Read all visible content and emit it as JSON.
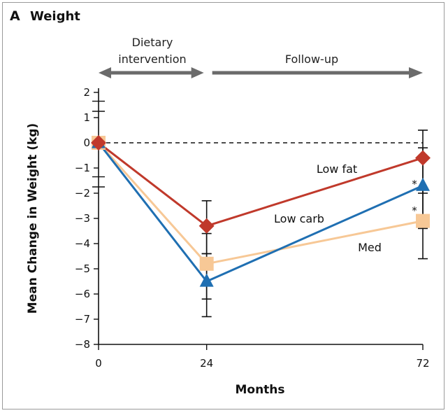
{
  "panel": {
    "letter": "A",
    "title": "Weight"
  },
  "phases": [
    {
      "text_lines": [
        "Dietary",
        "intervention"
      ],
      "from": 0,
      "to": 24
    },
    {
      "text_lines": [
        "Follow-up"
      ],
      "from": 24,
      "to": 72
    }
  ],
  "colors": {
    "low_fat": "#c0392b",
    "low_carb": "#1f6fb2",
    "med": "#f7c896",
    "phase_arrow": "#6b6b6b",
    "axis": "#111111"
  },
  "chart_data": {
    "type": "line",
    "xlabel": "Months",
    "ylabel": "Mean Change in Weight (kg)",
    "x_ticks": [
      0,
      24,
      72
    ],
    "y_ticks": [
      2,
      1,
      0,
      -1,
      -2,
      -3,
      -4,
      -5,
      -6,
      -7,
      -8
    ],
    "y_tick_labels": [
      "2",
      "1",
      "0",
      "−1",
      "−2",
      "−3",
      "−4",
      "−5",
      "−6",
      "−7",
      "−8"
    ],
    "xlim": [
      0,
      72
    ],
    "ylim": [
      -8,
      2
    ],
    "reference_line_y": 0,
    "series": [
      {
        "key": "low_fat",
        "name": "Low fat",
        "marker": "diamond",
        "x": [
          0,
          24,
          72
        ],
        "y": [
          0,
          -3.3,
          -0.6
        ],
        "err_low": [
          null,
          -4.4,
          -2.0
        ],
        "err_high": [
          null,
          -2.3,
          0.5
        ],
        "star_at_72": false
      },
      {
        "key": "low_carb",
        "name": "Low carb",
        "marker": "triangle",
        "x": [
          0,
          24,
          72
        ],
        "y": [
          0,
          -5.5,
          -1.7
        ],
        "err_low": [
          null,
          -6.9,
          -3.4
        ],
        "err_high": [
          null,
          -4.4,
          -0.2
        ],
        "star_at_72": true,
        "star": "*"
      },
      {
        "key": "med",
        "name": "Med",
        "marker": "square",
        "x": [
          0,
          24,
          72
        ],
        "y": [
          0,
          -4.8,
          -3.1
        ],
        "err_low": [
          null,
          -6.2,
          -4.6
        ],
        "err_high": [
          null,
          -3.6,
          -1.8
        ],
        "star_at_72": true,
        "star": "*"
      }
    ]
  }
}
